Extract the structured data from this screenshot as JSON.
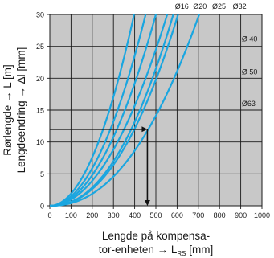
{
  "chart_data": {
    "type": "line",
    "xlabel_line1": "Lengde på kompensa-",
    "xlabel_line2_main": "tor-enheten → L",
    "xlabel_line2_sub": "RS",
    "xlabel_line2_unit": " [mm]",
    "ylabel_line1": "Rørlengde → L [m]",
    "ylabel_line2": "Lengdeendring → Δl [mm]",
    "xlim": [
      0,
      1000
    ],
    "ylim": [
      0,
      30
    ],
    "x_ticks": [
      0,
      100,
      200,
      300,
      400,
      500,
      600,
      700,
      800,
      900,
      1000
    ],
    "y_ticks": [
      0,
      5,
      10,
      15,
      20,
      25,
      30
    ],
    "grid": true,
    "series": [
      {
        "name": "Ø16",
        "k": 0.00019,
        "p": 2.0,
        "label_x": 590,
        "label_y": 30.9
      },
      {
        "name": "Ø20",
        "k": 0.000147,
        "p": 2.0,
        "label_x": 675,
        "label_y": 30.9
      },
      {
        "name": "Ø25",
        "k": 0.00012,
        "p": 2.0,
        "label_x": 765,
        "label_y": 30.9
      },
      {
        "name": "Ø32",
        "k": 9.8e-05,
        "p": 2.0,
        "label_x": 862,
        "label_y": 30.9
      },
      {
        "name": "Ø 40",
        "k": 2.48e-05,
        "p": 2.2,
        "label_x": 905,
        "label_y": 25.8
      },
      {
        "name": "Ø 50",
        "k": 2.28e-05,
        "p": 2.2,
        "label_x": 905,
        "label_y": 20.6
      },
      {
        "name": "Ø63",
        "k": 1.63e-05,
        "p": 2.2,
        "label_x": 905,
        "label_y": 15.6
      }
    ],
    "example": {
      "x": 460,
      "y": 12
    }
  }
}
